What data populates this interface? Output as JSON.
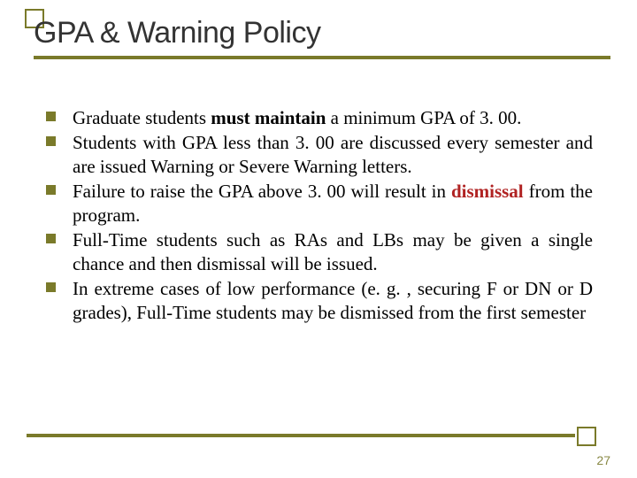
{
  "colors": {
    "accent": "#7a7a2a",
    "bullet": "#7a7a2a",
    "rule": "#7a7a2a",
    "title": "#333333",
    "body": "#000000",
    "dismissal": "#b02222",
    "bg": "#ffffff",
    "pagenum": "#888844"
  },
  "fonts": {
    "title_size": 34,
    "body_size": 21,
    "line_height": 27,
    "pagenum_size": 14
  },
  "title": "GPA & Warning Policy",
  "bullets": [
    {
      "pre": "Graduate students ",
      "emph": "must maintain",
      "post": " a minimum GPA of 3. 00."
    },
    {
      "pre": "Students with GPA less than 3. 00 are discussed every semester and are issued Warning or Severe Warning letters.",
      "emph": "",
      "post": ""
    },
    {
      "pre": "Failure to raise the GPA above 3. 00 will result in ",
      "emph2": "dismissal",
      "post": " from the program."
    },
    {
      "pre": "Full-Time students such as RAs and LBs may be given a single chance and then dismissal will be issued.",
      "emph": "",
      "post": ""
    },
    {
      "pre": "In extreme cases of low performance (e. g. , securing F or DN or D grades), Full-Time students may be dismissed from the first semester",
      "emph": "",
      "post": ""
    }
  ],
  "page_number": "27"
}
